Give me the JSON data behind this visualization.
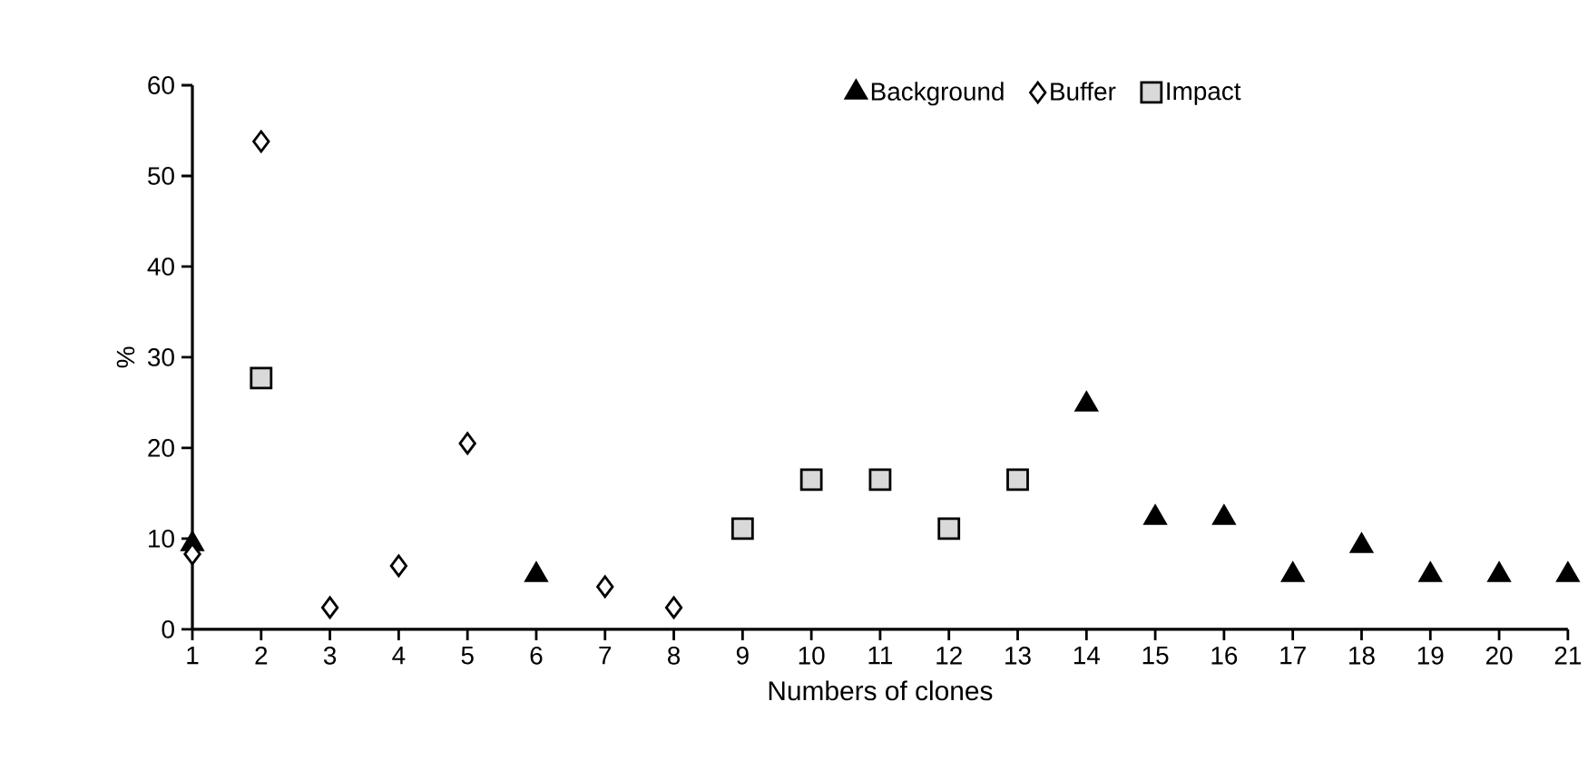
{
  "chart_data": {
    "type": "scatter",
    "xlabel": "Numbers of clones",
    "ylabel": "%",
    "x": [
      1,
      2,
      3,
      4,
      5,
      6,
      7,
      8,
      9,
      10,
      11,
      12,
      13,
      14,
      15,
      16,
      17,
      18,
      19,
      20,
      21
    ],
    "xlim": [
      1,
      21
    ],
    "xticks": [
      1,
      2,
      3,
      4,
      5,
      6,
      7,
      8,
      9,
      10,
      11,
      12,
      13,
      14,
      15,
      16,
      17,
      18,
      19,
      20,
      21
    ],
    "ylim": [
      0,
      60
    ],
    "yticks": [
      0,
      10,
      20,
      30,
      40,
      50,
      60
    ],
    "legend": "top",
    "grid": false,
    "series": [
      {
        "name": "Background",
        "color": "#000000",
        "marker": "triangle",
        "values": [
          9.4,
          null,
          null,
          null,
          null,
          6.0,
          null,
          null,
          null,
          null,
          null,
          null,
          null,
          24.8,
          12.3,
          12.3,
          6.0,
          9.2,
          6.0,
          6.0,
          6.0
        ]
      },
      {
        "name": "Buffer",
        "color": "#ffffff",
        "marker": "diamond",
        "values": [
          8.3,
          53.8,
          2.4,
          7.0,
          20.5,
          null,
          4.7,
          2.4,
          null,
          null,
          null,
          null,
          null,
          null,
          null,
          null,
          null,
          null,
          null,
          null,
          null
        ]
      },
      {
        "name": "Impact",
        "color": "#d9d9d9",
        "marker": "square",
        "values": [
          null,
          27.7,
          null,
          null,
          null,
          null,
          null,
          null,
          11.1,
          16.5,
          16.5,
          11.1,
          16.5,
          null,
          null,
          null,
          null,
          null,
          null,
          null,
          null
        ]
      }
    ]
  }
}
